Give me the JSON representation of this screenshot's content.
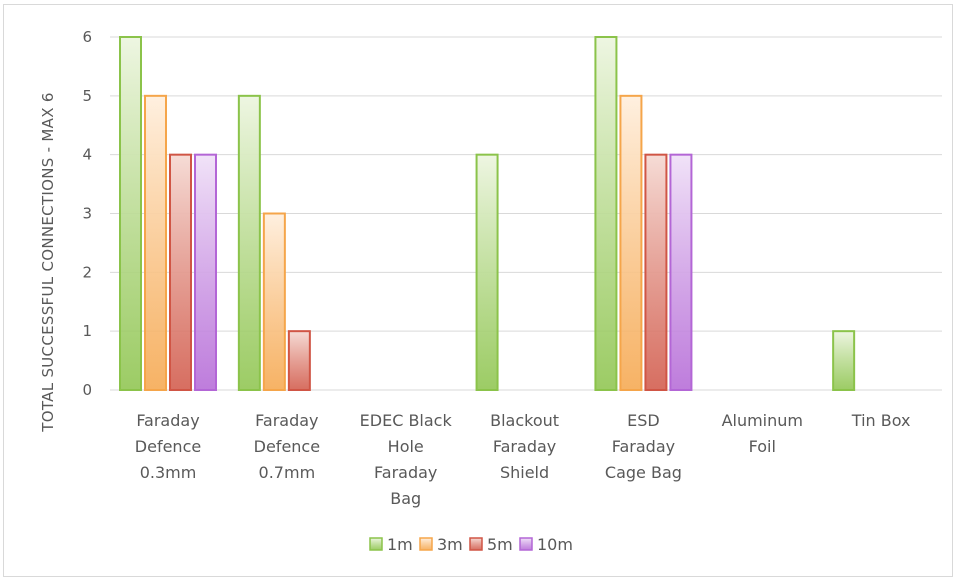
{
  "chart_data": {
    "type": "bar",
    "ylabel": "TOTAL SUCCESSFUL CONNECTIONS - MAX 6",
    "xlabel": "",
    "ylim": [
      0,
      6
    ],
    "yticks": [
      "0",
      "1",
      "2",
      "3",
      "4",
      "5",
      "6"
    ],
    "grid": true,
    "legend_position": "bottom",
    "categories": [
      [
        "Faraday",
        "Defence",
        "0.3mm"
      ],
      [
        "Faraday",
        "Defence",
        "0.7mm"
      ],
      [
        "EDEC Black",
        "Hole",
        "Faraday",
        "Bag"
      ],
      [
        "Blackout",
        "Faraday",
        "Shield"
      ],
      [
        "ESD",
        "Faraday",
        "Cage Bag"
      ],
      [
        "Aluminum",
        "Foil"
      ],
      [
        "Tin Box"
      ]
    ],
    "series": [
      {
        "name": "1m",
        "values": [
          6,
          5,
          0,
          4,
          6,
          0,
          1
        ],
        "color": "#8bc34a",
        "light": "#eef6e2"
      },
      {
        "name": "3m",
        "values": [
          5,
          3,
          0,
          0,
          5,
          0,
          0
        ],
        "color": "#f5a54a",
        "light": "#fff0e0"
      },
      {
        "name": "5m",
        "values": [
          4,
          1,
          0,
          0,
          4,
          0,
          0
        ],
        "color": "#d05545",
        "light": "#f6dcd6"
      },
      {
        "name": "10m",
        "values": [
          4,
          0,
          0,
          0,
          4,
          0,
          0
        ],
        "color": "#b366d6",
        "light": "#f1e3f8"
      }
    ]
  }
}
